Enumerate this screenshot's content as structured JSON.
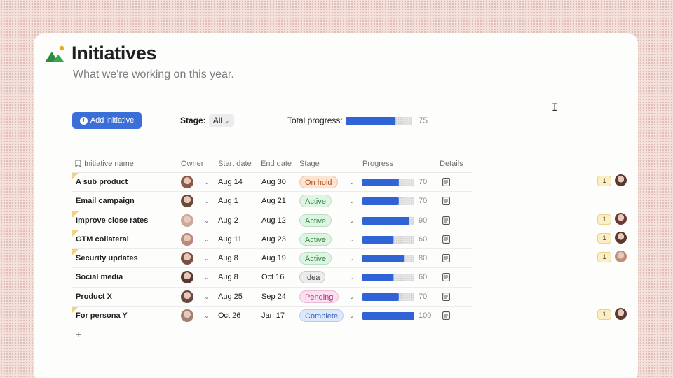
{
  "header": {
    "title": "Initiatives",
    "subtitle": "What we're working on this year."
  },
  "toolbar": {
    "add_label": "Add initiative",
    "stage_label": "Stage:",
    "stage_value": "All",
    "total_label": "Total progress:",
    "total_value": 75
  },
  "columns": {
    "name": "Initiative name",
    "owner": "Owner",
    "start": "Start date",
    "end": "End date",
    "stage": "Stage",
    "progress": "Progress",
    "details": "Details"
  },
  "rows": [
    {
      "name": "A sub product",
      "start": "Aug 14",
      "end": "Aug 30",
      "stage": "On hold",
      "progress": 70,
      "flag": true,
      "avatar_color": "#8a5a4a"
    },
    {
      "name": "Email campaign",
      "start": "Aug 1",
      "end": "Aug 21",
      "stage": "Active",
      "progress": 70,
      "flag": false,
      "avatar_color": "#6b4a3a"
    },
    {
      "name": "Improve close rates",
      "start": "Aug 2",
      "end": "Aug 12",
      "stage": "Active",
      "progress": 90,
      "flag": true,
      "avatar_color": "#c9a99a"
    },
    {
      "name": "GTM collateral",
      "start": "Aug 11",
      "end": "Aug 23",
      "stage": "Active",
      "progress": 60,
      "flag": true,
      "avatar_color": "#b88a7a"
    },
    {
      "name": "Security updates",
      "start": "Aug 8",
      "end": "Aug 19",
      "stage": "Active",
      "progress": 80,
      "flag": true,
      "avatar_color": "#7a5040"
    },
    {
      "name": "Social media",
      "start": "Aug 8",
      "end": "Oct 16",
      "stage": "Idea",
      "progress": 60,
      "flag": false,
      "avatar_color": "#5a3a30"
    },
    {
      "name": "Product X",
      "start": "Aug 25",
      "end": "Sep 24",
      "stage": "Pending",
      "progress": 70,
      "flag": false,
      "avatar_color": "#6a4a40"
    },
    {
      "name": "For persona Y",
      "start": "Oct 26",
      "end": "Jan 17",
      "stage": "Complete",
      "progress": 100,
      "flag": true,
      "avatar_color": "#a08070"
    }
  ],
  "stage_colors": {
    "On hold": {
      "bg": "#fce4d0",
      "fg": "#b4521e"
    },
    "Active": {
      "bg": "#dff4e3",
      "fg": "#2e8a45"
    },
    "Idea": {
      "bg": "#ececec",
      "fg": "#3d3e40"
    },
    "Pending": {
      "bg": "#fbe0ef",
      "fg": "#b0307a"
    },
    "Complete": {
      "bg": "#dde9fb",
      "fg": "#2d5fb8"
    }
  },
  "side_comments": [
    {
      "count": "1",
      "row": 0,
      "avatar_color": "#5a3a30"
    },
    {
      "count": "1",
      "row": 2,
      "avatar_color": "#6a3a35"
    },
    {
      "count": "1",
      "row": 3,
      "avatar_color": "#5a3a30"
    },
    {
      "count": "1",
      "row": 4,
      "avatar_color": "#c0907a"
    },
    {
      "count": "1",
      "row": 7,
      "avatar_color": "#5a3a30"
    }
  ],
  "colors": {
    "accent": "#3b6fd8",
    "bar_fill": "#2f63d6"
  }
}
